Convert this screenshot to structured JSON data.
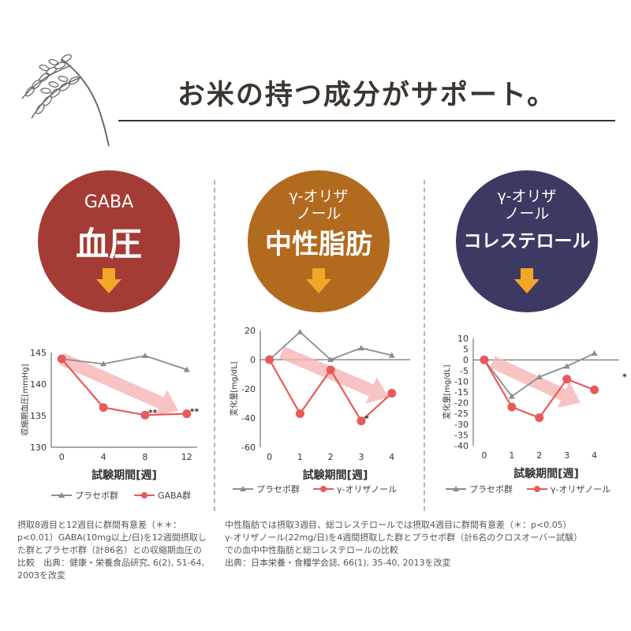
{
  "header": {
    "title": "お米の持つ成分がサポート。",
    "decor_icon": "rice-stalk-icon"
  },
  "colors": {
    "gaba": "#a43b34",
    "neutral_fat": "#b26a1f",
    "cholesterol": "#3c3a63",
    "arrow": "#f2a726",
    "series_red": "#e85a5a",
    "series_gray": "#8c8c8c",
    "trend_arrow": "#f6b4b4"
  },
  "panels": [
    {
      "circle_sub": "GABA",
      "circle_main": "血圧",
      "note": "摂取8週目と12週目に群間有意差（＊＊：p<0.01）GABA(10mg以上/日)を12週間摂取した群とプラセボ群（計86名）との収縮期血圧の比較　出典：健康・栄養食品研究, 6(2), 51-64, 2003を改変"
    },
    {
      "circle_sub": "γ-オリザ\nノール",
      "circle_main": "中性脂肪"
    },
    {
      "circle_sub": "γ-オリザ\nノール",
      "circle_main": "コレステロール"
    }
  ],
  "shared_note": [
    "中性脂肪では摂取3週目、総コレステロールでは摂取4週目に群間有意差（＊：p<0.05）",
    "γ-オリザノール(22mg/日)を4週間摂取した群とプラセボ群（計6名のクロスオーバー試験）",
    "での血中中性脂肪と総コレステロールの比較",
    "出典：日本栄養・食糧学会誌, 66(1), 35-40, 2013を改変"
  ],
  "chart_data": [
    {
      "type": "line",
      "xlabel": "試験期間[週]",
      "ylabel": "収縮期血圧[mmHg]",
      "x": [
        0,
        4,
        8,
        12
      ],
      "xticks": [
        "0",
        "4",
        "8",
        "12"
      ],
      "ylim": [
        130,
        145
      ],
      "yticks": [
        "130",
        "135",
        "140",
        "145"
      ],
      "series": [
        {
          "name": "プラセボ群",
          "color": "#8c8c8c",
          "marker": "triangle",
          "values": [
            144,
            143.2,
            144.5,
            142.3
          ]
        },
        {
          "name": "GABA群",
          "color": "#e85a5a",
          "marker": "circle",
          "values": [
            144,
            136.3,
            135.1,
            135.3
          ]
        }
      ],
      "annotations": [
        {
          "text": "**",
          "x": 8,
          "y": 135.1
        },
        {
          "text": "**",
          "x": 12,
          "y": 135.3
        }
      ]
    },
    {
      "type": "line",
      "xlabel": "試験期間[週]",
      "ylabel": "変化量[mg/dL]",
      "x": [
        0,
        1,
        2,
        3,
        4
      ],
      "xticks": [
        "0",
        "1",
        "2",
        "3",
        "4"
      ],
      "ylim": [
        -60,
        20
      ],
      "yticks": [
        "-60",
        "-40",
        "-20",
        "0",
        "20"
      ],
      "series": [
        {
          "name": "プラセボ群",
          "color": "#8c8c8c",
          "marker": "triangle",
          "values": [
            0,
            19,
            0,
            8,
            3
          ]
        },
        {
          "name": "γ-オリザノール",
          "color": "#e85a5a",
          "marker": "circle",
          "values": [
            0,
            -37,
            -7,
            -42,
            -23
          ]
        }
      ],
      "annotations": [
        {
          "text": "*",
          "x": 3,
          "y": -42
        }
      ]
    },
    {
      "type": "line",
      "xlabel": "試験期間[週]",
      "ylabel": "変化量[mg/dL]",
      "x": [
        0,
        1,
        2,
        3,
        4
      ],
      "xticks": [
        "0",
        "1",
        "2",
        "3",
        "4"
      ],
      "ylim": [
        -40,
        10
      ],
      "yticks": [
        "-40",
        "-35",
        "-30",
        "-25",
        "-20",
        "-15",
        "-10",
        "-5",
        "0",
        "5",
        "10"
      ],
      "series": [
        {
          "name": "プラセボ群",
          "color": "#8c8c8c",
          "marker": "triangle",
          "values": [
            0,
            -17,
            -8,
            -3,
            3
          ]
        },
        {
          "name": "γ-オリザノール",
          "color": "#e85a5a",
          "marker": "circle",
          "values": [
            0,
            -22,
            -27,
            -9,
            -14
          ]
        }
      ],
      "annotations": [
        {
          "text": "*",
          "x": 4.9,
          "y": -9
        }
      ]
    }
  ]
}
